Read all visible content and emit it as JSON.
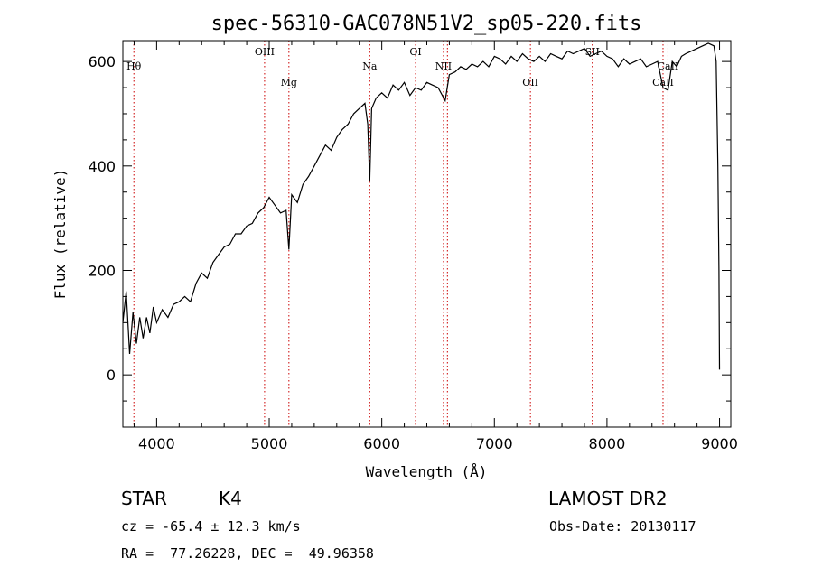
{
  "chart_data": {
    "type": "line",
    "title": "spec-56310-GAC078N51V2_sp05-220.fits",
    "xlabel": "Wavelength (Å)",
    "ylabel": "Flux (relative)",
    "xlim": [
      3700,
      9100
    ],
    "ylim": [
      -100,
      640
    ],
    "x_ticks": [
      4000,
      5000,
      6000,
      7000,
      8000,
      9000
    ],
    "y_ticks": [
      0,
      200,
      400,
      600
    ],
    "grid": false,
    "colors": {
      "spectrum": "#000000",
      "lines": "#cc0000"
    },
    "series": [
      {
        "x": [
          3700,
          3730,
          3760,
          3790,
          3820,
          3850,
          3880,
          3910,
          3940,
          3970,
          4000,
          4050,
          4100,
          4150,
          4200,
          4250,
          4300,
          4350,
          4400,
          4450,
          4500,
          4550,
          4600,
          4650,
          4700,
          4750,
          4800,
          4850,
          4900,
          4950,
          5000,
          5050,
          5100,
          5150,
          5175,
          5200,
          5250,
          5300,
          5350,
          5400,
          5450,
          5500,
          5550,
          5600,
          5650,
          5700,
          5750,
          5800,
          5850,
          5875,
          5893,
          5910,
          5950,
          6000,
          6050,
          6100,
          6150,
          6200,
          6250,
          6300,
          6350,
          6400,
          6450,
          6500,
          6563,
          6600,
          6650,
          6700,
          6750,
          6800,
          6850,
          6900,
          6950,
          7000,
          7050,
          7100,
          7150,
          7200,
          7250,
          7300,
          7350,
          7400,
          7450,
          7500,
          7550,
          7600,
          7650,
          7700,
          7750,
          7800,
          7850,
          7900,
          7950,
          8000,
          8050,
          8100,
          8150,
          8200,
          8250,
          8300,
          8350,
          8400,
          8450,
          8498,
          8542,
          8580,
          8620,
          8662,
          8700,
          8750,
          8800,
          8850,
          8900,
          8950,
          8970,
          8985,
          8995,
          9000
        ],
        "y": [
          100,
          160,
          40,
          120,
          60,
          110,
          70,
          110,
          80,
          130,
          100,
          125,
          110,
          135,
          140,
          150,
          140,
          175,
          195,
          185,
          215,
          230,
          245,
          250,
          270,
          270,
          285,
          290,
          310,
          320,
          340,
          325,
          310,
          315,
          240,
          345,
          330,
          365,
          380,
          400,
          420,
          440,
          430,
          455,
          470,
          480,
          500,
          510,
          520,
          480,
          370,
          510,
          530,
          540,
          530,
          555,
          545,
          560,
          535,
          550,
          545,
          560,
          555,
          550,
          525,
          575,
          580,
          590,
          585,
          595,
          590,
          600,
          590,
          610,
          605,
          595,
          610,
          600,
          615,
          605,
          600,
          610,
          600,
          615,
          610,
          605,
          620,
          615,
          620,
          625,
          610,
          615,
          620,
          610,
          605,
          590,
          605,
          595,
          600,
          605,
          590,
          595,
          600,
          550,
          545,
          600,
          590,
          610,
          615,
          620,
          625,
          630,
          635,
          630,
          600,
          400,
          200,
          10
        ]
      }
    ],
    "spectral_lines": [
      {
        "name": "Hθ",
        "wavelength": 3798,
        "label_row": "upper"
      },
      {
        "name": "OIII",
        "wavelength": 4959,
        "label_row": "top"
      },
      {
        "name": "Mg",
        "wavelength": 5175,
        "label_row": "lower"
      },
      {
        "name": "Na",
        "wavelength": 5893,
        "label_row": "upper"
      },
      {
        "name": "OI",
        "wavelength": 6300,
        "label_row": "top"
      },
      {
        "name": "NII",
        "wavelength": 6548,
        "label_row": "upper"
      },
      {
        "name": "",
        "wavelength": 6583,
        "label_row": "lower"
      },
      {
        "name": "OII",
        "wavelength": 7320,
        "label_row": "lower"
      },
      {
        "name": "SII",
        "wavelength": 7870,
        "label_row": "top"
      },
      {
        "name": "CaII",
        "wavelength": 8498,
        "label_row": "lower"
      },
      {
        "name": "CaII",
        "wavelength": 8542,
        "label_row": "upper"
      }
    ]
  },
  "info": {
    "class": "STAR",
    "subclass": "K4",
    "survey": "LAMOST DR2",
    "cz": "cz = -65.4 ± 12.3 km/s",
    "obs_date": "Obs-Date: 20130117",
    "coords": "RA =  77.26228, DEC =  49.96358"
  }
}
